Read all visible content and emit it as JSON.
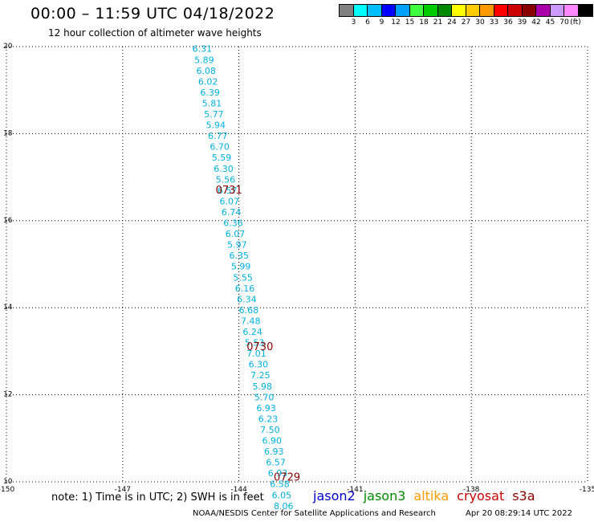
{
  "header": {
    "title": "00:00 – 11:59 UTC 04/18/2022",
    "subtitle": "12 hour collection of altimeter wave heights"
  },
  "legend": {
    "colors": [
      "#808080",
      "#00ffff",
      "#00bfff",
      "#0000ff",
      "#00a0ff",
      "#40ff40",
      "#00cc00",
      "#008800",
      "#ffff00",
      "#ffcc00",
      "#ff9900",
      "#ff0000",
      "#cc0000",
      "#880000",
      "#aa00aa",
      "#cc99ff",
      "#ff88ff",
      "#000000"
    ],
    "labels": [
      "3",
      "6",
      "9",
      "12",
      "15",
      "18",
      "21",
      "24",
      "27",
      "30",
      "33",
      "36",
      "39",
      "42",
      "45",
      "70"
    ],
    "unit": "(ft)"
  },
  "chart_data": {
    "type": "scatter",
    "xlim": [
      -150,
      -135
    ],
    "ylim": [
      10,
      20
    ],
    "x_ticks": [
      "-150",
      "-147",
      "-144",
      "-141",
      "-138",
      "-135"
    ],
    "y_ticks": [
      "10",
      "12",
      "14",
      "16",
      "18",
      "20"
    ],
    "grid": true,
    "track_labels": [
      {
        "lon": -144.6,
        "lat": 16.7,
        "text": "0731",
        "color": "#880000"
      },
      {
        "lon": -143.8,
        "lat": 13.1,
        "text": "0730",
        "color": "#880000"
      },
      {
        "lon": -143.1,
        "lat": 10.1,
        "text": "0729",
        "color": "#880000"
      }
    ],
    "series": [
      {
        "color": "#00b0e0",
        "points": [
          {
            "lon": -145.2,
            "lat": 19.95,
            "swh": "6.31"
          },
          {
            "lon": -145.15,
            "lat": 19.7,
            "swh": "5.89"
          },
          {
            "lon": -145.1,
            "lat": 19.45,
            "swh": "6.08"
          },
          {
            "lon": -145.05,
            "lat": 19.2,
            "swh": "6.02"
          },
          {
            "lon": -145.0,
            "lat": 18.95,
            "swh": "6.39"
          },
          {
            "lon": -144.95,
            "lat": 18.7,
            "swh": "5.81"
          },
          {
            "lon": -144.9,
            "lat": 18.45,
            "swh": "5.77"
          },
          {
            "lon": -144.85,
            "lat": 18.2,
            "swh": "5.94"
          },
          {
            "lon": -144.8,
            "lat": 17.95,
            "swh": "6.77"
          },
          {
            "lon": -144.75,
            "lat": 17.7,
            "swh": "6.70"
          },
          {
            "lon": -144.7,
            "lat": 17.45,
            "swh": "5.59"
          },
          {
            "lon": -144.65,
            "lat": 17.2,
            "swh": "6.30"
          },
          {
            "lon": -144.6,
            "lat": 16.95,
            "swh": "5.56"
          },
          {
            "lon": -144.55,
            "lat": 16.7,
            "swh": "6.57"
          },
          {
            "lon": -144.5,
            "lat": 16.45,
            "swh": "6.07"
          },
          {
            "lon": -144.45,
            "lat": 16.2,
            "swh": "6.74"
          },
          {
            "lon": -144.4,
            "lat": 15.95,
            "swh": "6.36"
          },
          {
            "lon": -144.35,
            "lat": 15.7,
            "swh": "6.07"
          },
          {
            "lon": -144.3,
            "lat": 15.45,
            "swh": "5.97"
          },
          {
            "lon": -144.25,
            "lat": 15.2,
            "swh": "6.35"
          },
          {
            "lon": -144.2,
            "lat": 14.95,
            "swh": "5.99"
          },
          {
            "lon": -144.15,
            "lat": 14.7,
            "swh": "5.55"
          },
          {
            "lon": -144.1,
            "lat": 14.45,
            "swh": "6.16"
          },
          {
            "lon": -144.05,
            "lat": 14.2,
            "swh": "6.34"
          },
          {
            "lon": -144.0,
            "lat": 13.95,
            "swh": "6.68"
          },
          {
            "lon": -143.95,
            "lat": 13.7,
            "swh": "7.48"
          },
          {
            "lon": -143.9,
            "lat": 13.45,
            "swh": "6.24"
          },
          {
            "lon": -143.85,
            "lat": 13.2,
            "swh": "5.53"
          },
          {
            "lon": -143.8,
            "lat": 12.95,
            "swh": "7.01"
          },
          {
            "lon": -143.75,
            "lat": 12.7,
            "swh": "6.30"
          },
          {
            "lon": -143.7,
            "lat": 12.45,
            "swh": "7.25"
          },
          {
            "lon": -143.65,
            "lat": 12.2,
            "swh": "5.98"
          },
          {
            "lon": -143.6,
            "lat": 11.95,
            "swh": "5.70"
          },
          {
            "lon": -143.55,
            "lat": 11.7,
            "swh": "6.93"
          },
          {
            "lon": -143.5,
            "lat": 11.45,
            "swh": "6.23"
          },
          {
            "lon": -143.45,
            "lat": 11.2,
            "swh": "7.50"
          },
          {
            "lon": -143.4,
            "lat": 10.95,
            "swh": "6.90"
          },
          {
            "lon": -143.35,
            "lat": 10.7,
            "swh": "6.93"
          },
          {
            "lon": -143.3,
            "lat": 10.45,
            "swh": "6.57"
          },
          {
            "lon": -143.25,
            "lat": 10.2,
            "swh": "6.93"
          },
          {
            "lon": -143.2,
            "lat": 9.95,
            "swh": "6.58"
          },
          {
            "lon": -143.15,
            "lat": 9.7,
            "swh": "6.05"
          },
          {
            "lon": -143.1,
            "lat": 9.45,
            "swh": "8.06"
          }
        ]
      }
    ]
  },
  "footer": {
    "note": "note:  1) Time is in UTC; 2) SWH is in feet",
    "satellites": [
      {
        "name": "jason2",
        "color": "#0000cc"
      },
      {
        "name": "jason3",
        "color": "#008800"
      },
      {
        "name": "altika",
        "color": "#ff9900"
      },
      {
        "name": "cryosat",
        "color": "#cc0000"
      },
      {
        "name": "s3a",
        "color": "#880000"
      }
    ],
    "credit": "NOAA/NESDIS Center for Satellite Applications and Research",
    "timestamp": "Apr 20 08:29:14 UTC 2022"
  }
}
